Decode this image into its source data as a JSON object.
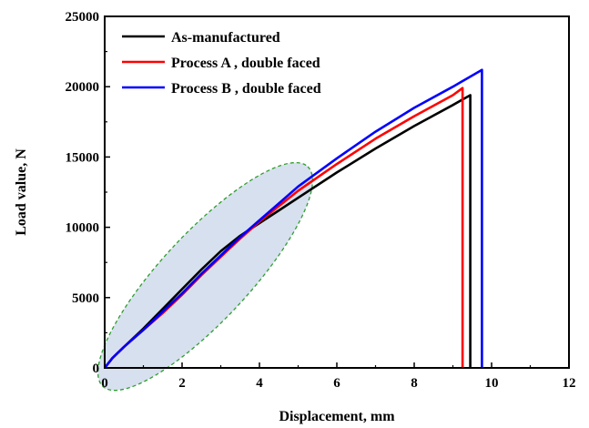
{
  "chart_data": {
    "type": "line",
    "title": "",
    "xlabel": "Displacement, mm",
    "ylabel": "Load value, N",
    "xlim": [
      0,
      12
    ],
    "ylim": [
      0,
      25000
    ],
    "xticks": [
      0,
      2,
      4,
      6,
      8,
      10,
      12
    ],
    "yticks": [
      0,
      5000,
      10000,
      15000,
      20000,
      25000
    ],
    "xtick_labels": [
      "0",
      "2",
      "4",
      "6",
      "8",
      "10",
      "12"
    ],
    "ytick_labels": [
      "0",
      "5000",
      "10000",
      "15000",
      "20000",
      "25000"
    ],
    "grid": false,
    "legend_position": "top-left",
    "series": [
      {
        "name": "As-manufactured",
        "color": "#000000",
        "x": [
          0,
          0.2,
          0.5,
          1.0,
          1.5,
          2.0,
          2.5,
          3.0,
          3.5,
          4.0,
          4.5,
          5.0,
          6.0,
          7.0,
          8.0,
          9.0,
          9.45,
          9.45
        ],
        "y": [
          0,
          700,
          1500,
          2800,
          4200,
          5600,
          7000,
          8300,
          9400,
          10300,
          11200,
          12100,
          13900,
          15600,
          17200,
          18700,
          19400,
          0
        ]
      },
      {
        "name": "Process A , double faced",
        "color": "#ff0000",
        "x": [
          0,
          0.2,
          0.5,
          1.0,
          1.5,
          2.0,
          2.5,
          3.0,
          3.5,
          4.0,
          4.5,
          5.0,
          6.0,
          7.0,
          8.0,
          9.0,
          9.25,
          9.25
        ],
        "y": [
          0,
          700,
          1500,
          2700,
          3900,
          5200,
          6600,
          7900,
          9200,
          10400,
          11500,
          12600,
          14500,
          16300,
          17900,
          19400,
          19900,
          0
        ]
      },
      {
        "name": "Process B , double faced",
        "color": "#0000ff",
        "x": [
          0,
          0.2,
          0.5,
          1.0,
          1.5,
          2.0,
          2.5,
          3.0,
          3.5,
          4.0,
          4.5,
          5.0,
          6.0,
          7.0,
          8.0,
          9.0,
          9.75,
          9.75
        ],
        "y": [
          0,
          700,
          1500,
          2700,
          4000,
          5300,
          6700,
          8000,
          9300,
          10500,
          11700,
          12900,
          14900,
          16800,
          18500,
          20000,
          21200,
          0
        ]
      }
    ],
    "annotations": [
      {
        "type": "ellipse",
        "center": [
          2.6,
          6500
        ],
        "fill": "#c9d5e8",
        "stroke": "#2e9e2e",
        "dashed": true
      }
    ]
  }
}
